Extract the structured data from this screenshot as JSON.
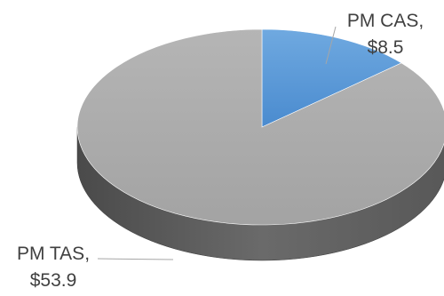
{
  "chart_data": {
    "type": "pie",
    "style": "3d",
    "title": "",
    "legend": "none",
    "categories": [
      "PM CAS",
      "PM TAS"
    ],
    "values": [
      8.5,
      53.9
    ],
    "value_labels": [
      "$8.5",
      "$53.9"
    ],
    "colors": {
      "PM CAS": "#5b9bd5",
      "PM TAS": "#a5a5a5"
    },
    "labels": [
      {
        "category": "PM CAS",
        "line1": "PM CAS,",
        "line2": "$8.5"
      },
      {
        "category": "PM TAS",
        "line1": "PM TAS,",
        "line2": "$53.9"
      }
    ]
  }
}
